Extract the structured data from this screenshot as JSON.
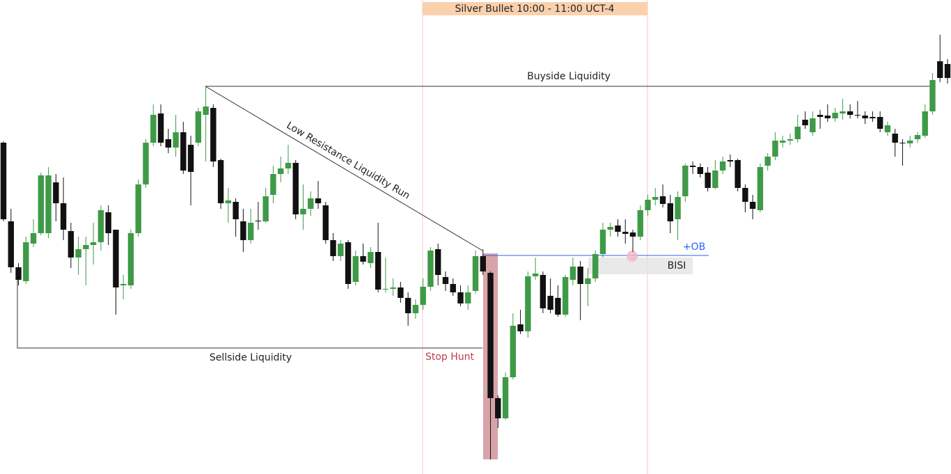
{
  "chart_data": {
    "type": "candlestick",
    "ylim": [
      0,
      681
    ],
    "up_color": "#3f9a47",
    "down_color": "#111111",
    "series": {
      "open": [
        476,
        363,
        297,
        277,
        331,
        346,
        346,
        419,
        389,
        349,
        311,
        323,
        329,
        333,
        376,
        351,
        271,
        271,
        346,
        416,
        476,
        518,
        481,
        469,
        491,
        473,
        476,
        516,
        526,
        451,
        389,
        391,
        363,
        336,
        364,
        363,
        401,
        431,
        439,
        447,
        373,
        381,
        396,
        386,
        336,
        313,
        333,
        276,
        313,
        303,
        319,
        265,
        266,
        268,
        253,
        231,
        243,
        269,
        323,
        283,
        273,
        261,
        245,
        263,
        313,
        289,
        109,
        80,
        139,
        215,
        205,
        284,
        286,
        256,
        253,
        229,
        279,
        298,
        273,
        281,
        316,
        351,
        357,
        348,
        347,
        341,
        379,
        394,
        399,
        389,
        366,
        399,
        443,
        441,
        433,
        411,
        436,
        451,
        451,
        411,
        391,
        379,
        443,
        456,
        476,
        479,
        481,
        509,
        491,
        516,
        515,
        511,
        518,
        521,
        516,
        515,
        513,
        513,
        491,
        489,
        476,
        475,
        481,
        486,
        521,
        593,
        589
      ],
      "high": [
        478,
        381,
        303,
        341,
        366,
        433,
        441,
        431,
        426,
        361,
        341,
        341,
        361,
        386,
        386,
        351,
        286,
        351,
        423,
        481,
        531,
        531,
        496,
        516,
        506,
        486,
        526,
        556,
        531,
        453,
        411,
        396,
        381,
        381,
        391,
        411,
        443,
        456,
        473,
        451,
        416,
        406,
        421,
        391,
        346,
        336,
        336,
        321,
        331,
        326,
        361,
        311,
        281,
        276,
        261,
        251,
        281,
        326,
        331,
        291,
        281,
        271,
        271,
        321,
        323,
        291,
        113,
        146,
        231,
        236,
        291,
        311,
        291,
        281,
        271,
        286,
        311,
        306,
        296,
        321,
        361,
        361,
        366,
        366,
        351,
        386,
        401,
        411,
        416,
        401,
        406,
        446,
        449,
        446,
        441,
        451,
        456,
        459,
        453,
        416,
        401,
        446,
        461,
        491,
        486,
        489,
        516,
        521,
        521,
        523,
        531,
        526,
        539,
        531,
        536,
        521,
        521,
        521,
        506,
        496,
        481,
        486,
        491,
        531,
        576,
        631,
        596
      ],
      "low": [
        363,
        289,
        271,
        273,
        326,
        343,
        339,
        363,
        336,
        296,
        286,
        271,
        301,
        321,
        329,
        229,
        251,
        266,
        341,
        411,
        471,
        471,
        461,
        456,
        431,
        386,
        471,
        449,
        441,
        381,
        361,
        341,
        319,
        331,
        351,
        361,
        389,
        419,
        431,
        366,
        351,
        371,
        381,
        331,
        306,
        306,
        266,
        271,
        301,
        296,
        261,
        261,
        256,
        246,
        213,
        223,
        236,
        263,
        271,
        263,
        256,
        241,
        236,
        259,
        286,
        21,
        66,
        78,
        136,
        201,
        196,
        279,
        231,
        231,
        226,
        226,
        271,
        221,
        241,
        276,
        311,
        341,
        341,
        331,
        319,
        336,
        371,
        386,
        383,
        346,
        336,
        391,
        431,
        426,
        406,
        409,
        431,
        441,
        406,
        376,
        366,
        376,
        436,
        451,
        469,
        473,
        476,
        496,
        486,
        496,
        506,
        506,
        509,
        511,
        511,
        503,
        506,
        491,
        486,
        456,
        443,
        469,
        476,
        483,
        516,
        563,
        561
      ],
      "close": [
        366,
        297,
        279,
        333,
        346,
        429,
        429,
        389,
        351,
        311,
        323,
        329,
        333,
        379,
        346,
        268,
        273,
        346,
        416,
        476,
        516,
        476,
        469,
        491,
        436,
        434,
        521,
        528,
        449,
        389,
        393,
        366,
        336,
        361,
        363,
        399,
        431,
        439,
        447,
        373,
        381,
        396,
        389,
        336,
        313,
        331,
        273,
        313,
        305,
        319,
        265,
        266,
        268,
        253,
        231,
        243,
        269,
        321,
        286,
        273,
        261,
        245,
        261,
        313,
        291,
        109,
        80,
        139,
        213,
        205,
        284,
        288,
        238,
        236,
        229,
        283,
        298,
        273,
        281,
        316,
        351,
        355,
        348,
        345,
        341,
        379,
        394,
        398,
        388,
        363,
        398,
        443,
        441,
        431,
        411,
        436,
        449,
        449,
        411,
        391,
        381,
        441,
        456,
        479,
        479,
        481,
        499,
        501,
        511,
        513,
        511,
        519,
        521,
        516,
        515,
        511,
        511,
        496,
        501,
        476,
        475,
        479,
        487,
        521,
        566,
        569,
        569
      ]
    },
    "annotations": {
      "session": "Silver Bullet 10:00 - 11:00 UCT-4",
      "buyside": "Buyside Liquidity",
      "sellside": "Sellside Liquidity",
      "trendline": "Low Resistance Liquidity Run",
      "stop_hunt": "Stop Hunt",
      "ob": "+OB",
      "bisi": "BISI"
    }
  }
}
